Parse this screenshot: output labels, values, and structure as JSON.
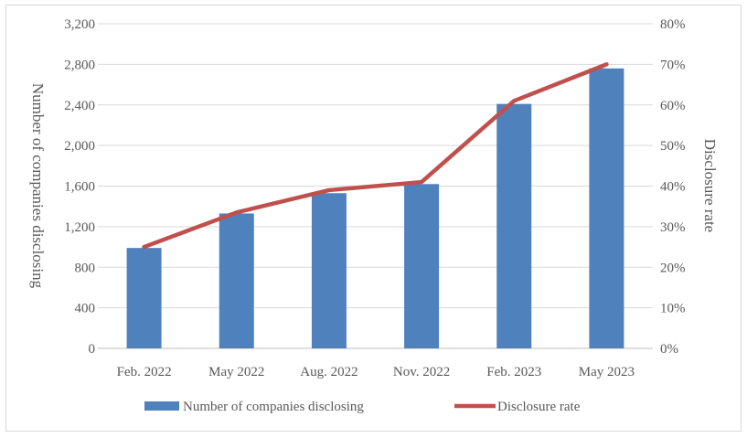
{
  "chart_data": {
    "type": "bar+line",
    "categories": [
      "Feb. 2022",
      "May 2022",
      "Aug. 2022",
      "Nov. 2022",
      "Feb. 2023",
      "May 2023"
    ],
    "series": [
      {
        "name": "Number of companies disclosing",
        "type": "bar",
        "axis": "left",
        "color": "#4f81bd",
        "values": [
          990,
          1330,
          1530,
          1620,
          2410,
          2760
        ]
      },
      {
        "name": "Disclosure rate",
        "type": "line",
        "axis": "right",
        "color": "#c0504d",
        "values": [
          0.25,
          0.335,
          0.39,
          0.41,
          0.61,
          0.7
        ]
      }
    ],
    "ylabel": "Number of companies disclosing",
    "y2label": "Disclosure rate",
    "ylim": [
      0,
      3200
    ],
    "y2lim": [
      0,
      0.8
    ],
    "yticks": [
      "0",
      "400",
      "800",
      "1,200",
      "1,600",
      "2,000",
      "2,400",
      "2,800",
      "3,200"
    ],
    "y2ticks": [
      "0%",
      "10%",
      "20%",
      "30%",
      "40%",
      "50%",
      "60%",
      "70%",
      "80%"
    ],
    "grid": true,
    "legend_position": "bottom"
  }
}
